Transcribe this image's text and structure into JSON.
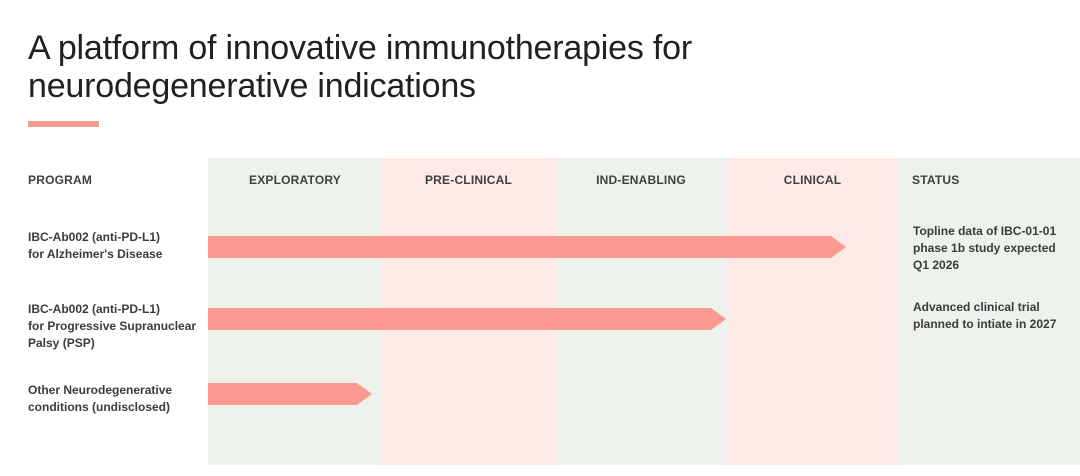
{
  "title": {
    "text": "A platform of innovative immunotherapies for\nneurodegenerative indications"
  },
  "colors": {
    "bar": "#fb9a91",
    "stage_column_green": "#edf2ec",
    "stage_column_pink": "#fde9e6",
    "title_underline": "#f29b93",
    "title_text": "#212121",
    "body_text": "#3b3b3b"
  },
  "pipeline": {
    "headers": {
      "program": "PROGRAM",
      "stages": [
        "EXPLORATORY",
        "PRE-CLINICAL",
        "IND-ENABLING",
        "CLINICAL"
      ],
      "status": "STATUS"
    },
    "rows": [
      {
        "program": "IBC-Ab002 (anti-PD-L1)\nfor Alzheimer's Disease",
        "progress_stages": 3.7,
        "status": "Topline data of IBC-01-01\nphase 1b study expected\nQ1 2026"
      },
      {
        "program": "IBC-Ab002 (anti-PD-L1)\nfor Progressive Supranuclear\nPalsy (PSP)",
        "progress_stages": 3.0,
        "status": "Advanced clinical trial\nplanned to intiate in 2027"
      },
      {
        "program": "Other Neurodegenerative\nconditions (undisclosed)",
        "progress_stages": 0.95,
        "status": ""
      }
    ]
  },
  "chart_data": {
    "type": "bar",
    "orientation": "horizontal",
    "title": "A platform of innovative immunotherapies for neurodegenerative indications",
    "x_stages": [
      "EXPLORATORY",
      "PRE-CLINICAL",
      "IND-ENABLING",
      "CLINICAL"
    ],
    "xlim": [
      0,
      4
    ],
    "categories": [
      "IBC-Ab002 (anti-PD-L1) for Alzheimer's Disease",
      "IBC-Ab002 (anti-PD-L1) for Progressive Supranuclear Palsy (PSP)",
      "Other Neurodegenerative conditions (undisclosed)"
    ],
    "values": [
      3.7,
      3.0,
      0.95
    ],
    "annotations": [
      "Topline data of IBC-01-01 phase 1b study expected Q1 2026",
      "Advanced clinical trial planned to intiate in 2027",
      ""
    ],
    "legend": "none",
    "grid": false
  }
}
